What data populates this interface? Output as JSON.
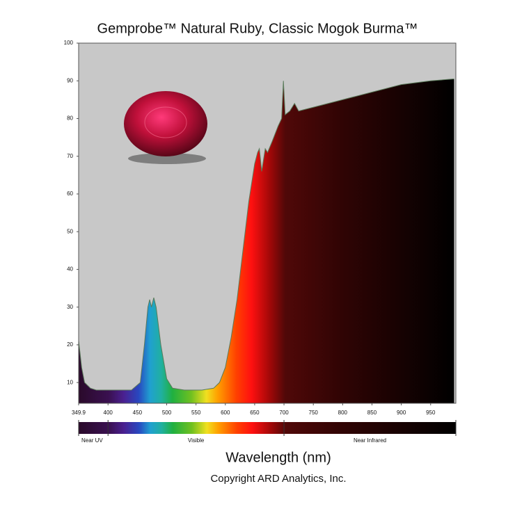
{
  "chart_data": {
    "type": "area",
    "title": "Gemprobe™  Natural Ruby, Classic Mogok Burma™",
    "x_label": "Wavelength (nm)",
    "copyright": "Copyright ARD Analytics, Inc.",
    "x": [
      350,
      355,
      360,
      370,
      380,
      400,
      420,
      440,
      455,
      462,
      468,
      471,
      474,
      478,
      482,
      490,
      500,
      510,
      530,
      560,
      580,
      590,
      600,
      610,
      620,
      630,
      640,
      650,
      655,
      658,
      662,
      666,
      668,
      672,
      680,
      690,
      696,
      699,
      702,
      710,
      718,
      725,
      750,
      800,
      850,
      900,
      950,
      990
    ],
    "values": [
      21,
      14,
      10,
      8.5,
      8,
      8,
      8,
      8,
      10,
      20,
      30,
      32,
      30,
      32.5,
      30,
      20,
      11,
      8.5,
      8,
      8,
      8.5,
      10,
      14,
      22,
      32,
      45,
      58,
      68,
      71,
      72,
      66,
      70,
      72,
      71,
      74,
      78,
      80,
      90,
      81,
      82,
      84,
      82,
      83,
      85,
      87,
      89,
      90,
      90.5
    ],
    "line_color": "#5a7a5a",
    "background": "#c8c8c8",
    "xlim": [
      349.9,
      993
    ],
    "ylim": [
      4.5,
      100
    ],
    "xticks": [
      349.9,
      400,
      450,
      500,
      550,
      600,
      650,
      700,
      750,
      800,
      850,
      900,
      950
    ],
    "yticks": [
      10,
      20,
      30,
      40,
      50,
      60,
      70,
      80,
      90,
      100
    ],
    "band_labels": [
      "Near UV",
      "Visible",
      "Near Infrared"
    ],
    "band_dividers": [
      400,
      700
    ]
  }
}
